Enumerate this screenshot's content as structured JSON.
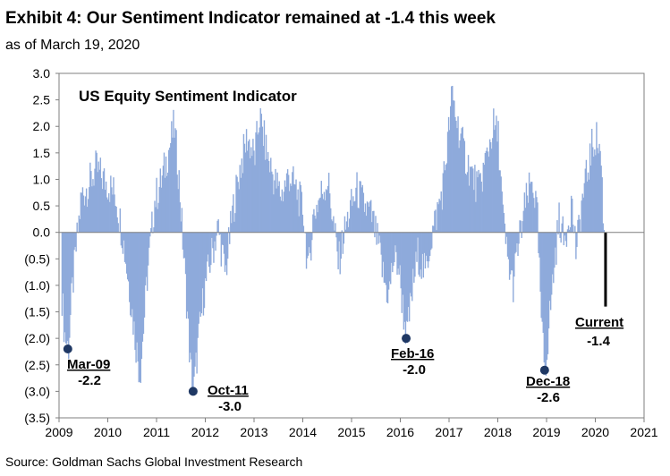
{
  "title": "Exhibit 4: Our Sentiment Indicator remained at -1.4 this week",
  "subtitle": "as of March 19, 2020",
  "source": "Source: Goldman Sachs Global Investment Research",
  "colors": {
    "bars": "#8eaadb",
    "annotation": "#1f3864",
    "current": "#000000",
    "axis": "#7f7f7f"
  },
  "chart_data": {
    "type": "bar",
    "title": "US Equity Sentiment Indicator",
    "xlabel": "",
    "ylabel": "",
    "ylim": [
      -3.5,
      3.0
    ],
    "xlim": [
      2009,
      2021
    ],
    "grid": false,
    "y_ticks": [
      3.0,
      2.5,
      2.0,
      1.5,
      1.0,
      0.5,
      0.0,
      -0.5,
      -1.0,
      -1.5,
      -2.0,
      -2.5,
      -3.0,
      -3.5
    ],
    "y_tick_labels": [
      "3.0",
      "2.5",
      "2.0",
      "1.5",
      "1.0",
      "0.5",
      "0.0",
      "(0.5)",
      "(1.0)",
      "(1.5)",
      "(2.0)",
      "(2.5)",
      "(3.0)",
      "(3.5)"
    ],
    "x_ticks": [
      2009,
      2010,
      2011,
      2012,
      2013,
      2014,
      2015,
      2016,
      2017,
      2018,
      2019,
      2020,
      2021
    ],
    "x_tick_labels": [
      "2009",
      "2010",
      "2011",
      "2012",
      "2013",
      "2014",
      "2015",
      "2016",
      "2017",
      "2018",
      "2019",
      "2020",
      "2021"
    ],
    "series_keyframes": [
      [
        2009.05,
        -1.2
      ],
      [
        2009.1,
        -1.9
      ],
      [
        2009.18,
        -2.2
      ],
      [
        2009.25,
        -1.2
      ],
      [
        2009.35,
        -0.2
      ],
      [
        2009.45,
        0.7
      ],
      [
        2009.6,
        0.9
      ],
      [
        2009.75,
        1.2
      ],
      [
        2009.9,
        1.0
      ],
      [
        2010.0,
        0.9
      ],
      [
        2010.15,
        0.7
      ],
      [
        2010.3,
        -0.1
      ],
      [
        2010.45,
        -1.2
      ],
      [
        2010.55,
        -2.0
      ],
      [
        2010.65,
        -2.7
      ],
      [
        2010.8,
        -0.8
      ],
      [
        2010.95,
        0.6
      ],
      [
        2011.1,
        1.0
      ],
      [
        2011.25,
        1.6
      ],
      [
        2011.35,
        2.0
      ],
      [
        2011.45,
        1.0
      ],
      [
        2011.55,
        -0.5
      ],
      [
        2011.62,
        -1.5
      ],
      [
        2011.68,
        -2.5
      ],
      [
        2011.75,
        -3.0
      ],
      [
        2011.85,
        -2.0
      ],
      [
        2011.95,
        -1.2
      ],
      [
        2012.1,
        -0.5
      ],
      [
        2012.25,
        0.1
      ],
      [
        2012.4,
        -0.8
      ],
      [
        2012.55,
        0.4
      ],
      [
        2012.7,
        1.2
      ],
      [
        2012.85,
        1.8
      ],
      [
        2013.0,
        1.4
      ],
      [
        2013.1,
        2.2
      ],
      [
        2013.25,
        1.5
      ],
      [
        2013.4,
        1.0
      ],
      [
        2013.55,
        0.7
      ],
      [
        2013.7,
        1.1
      ],
      [
        2013.85,
        0.8
      ],
      [
        2014.0,
        0.4
      ],
      [
        2014.1,
        -0.8
      ],
      [
        2014.2,
        0.3
      ],
      [
        2014.35,
        0.7
      ],
      [
        2014.5,
        1.0
      ],
      [
        2014.6,
        0.3
      ],
      [
        2014.72,
        -0.6
      ],
      [
        2014.82,
        -0.1
      ],
      [
        2014.95,
        0.4
      ],
      [
        2015.1,
        0.8
      ],
      [
        2015.25,
        0.5
      ],
      [
        2015.4,
        0.3
      ],
      [
        2015.55,
        -0.3
      ],
      [
        2015.65,
        -0.9
      ],
      [
        2015.75,
        -1.2
      ],
      [
        2015.85,
        -0.5
      ],
      [
        2015.95,
        -0.6
      ],
      [
        2016.05,
        -1.5
      ],
      [
        2016.12,
        -2.0
      ],
      [
        2016.25,
        -1.0
      ],
      [
        2016.35,
        -0.4
      ],
      [
        2016.5,
        -0.8
      ],
      [
        2016.6,
        -0.2
      ],
      [
        2016.75,
        0.4
      ],
      [
        2016.85,
        0.8
      ],
      [
        2016.95,
        1.6
      ],
      [
        2017.05,
        2.6
      ],
      [
        2017.15,
        2.1
      ],
      [
        2017.3,
        1.5
      ],
      [
        2017.45,
        1.1
      ],
      [
        2017.6,
        0.8
      ],
      [
        2017.75,
        1.4
      ],
      [
        2017.9,
        2.0
      ],
      [
        2018.0,
        1.8
      ],
      [
        2018.1,
        0.2
      ],
      [
        2018.2,
        -0.6
      ],
      [
        2018.3,
        -1.0
      ],
      [
        2018.4,
        -0.3
      ],
      [
        2018.55,
        0.5
      ],
      [
        2018.7,
        1.0
      ],
      [
        2018.8,
        0.3
      ],
      [
        2018.85,
        -1.0
      ],
      [
        2018.9,
        -2.0
      ],
      [
        2018.96,
        -2.6
      ],
      [
        2019.05,
        -1.6
      ],
      [
        2019.15,
        -0.6
      ],
      [
        2019.25,
        0.3
      ],
      [
        2019.35,
        -0.2
      ],
      [
        2019.5,
        0.6
      ],
      [
        2019.6,
        -0.4
      ],
      [
        2019.7,
        0.5
      ],
      [
        2019.82,
        1.1
      ],
      [
        2019.92,
        1.6
      ],
      [
        2020.0,
        1.8
      ],
      [
        2020.1,
        1.5
      ],
      [
        2020.15,
        0.4
      ],
      [
        2020.18,
        -0.5
      ],
      [
        2020.21,
        -1.4
      ]
    ],
    "bar_step": 0.0192,
    "current": {
      "x": 2020.21,
      "value": -1.4
    },
    "annotations": [
      {
        "date": "Mar-09",
        "value": "-2.2",
        "x": 2009.18,
        "y": -2.2
      },
      {
        "date": "Oct-11",
        "value": "-3.0",
        "x": 2011.75,
        "y": -3.0
      },
      {
        "date": "Feb-16",
        "value": "-2.0",
        "x": 2016.12,
        "y": -2.0
      },
      {
        "date": "Dec-18",
        "value": "-2.6",
        "x": 2018.96,
        "y": -2.6
      },
      {
        "date": "Current",
        "value": "-1.4",
        "x": 2020.21,
        "y": -1.4
      }
    ]
  }
}
